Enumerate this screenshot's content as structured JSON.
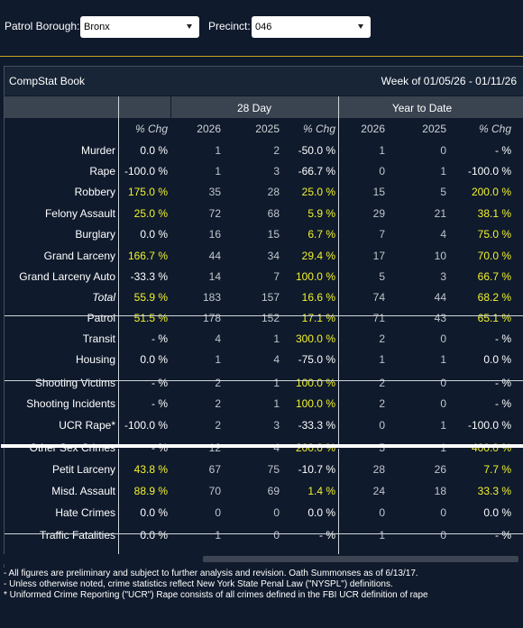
{
  "filters": {
    "borough_label": "Patrol Borough:",
    "borough_value": "Bronx",
    "precinct_label": "Precinct:",
    "precinct_value": "046"
  },
  "panel": {
    "title": "CompStat Book",
    "week": "Week of 01/05/26 - 01/11/26"
  },
  "groups": {
    "day28": "28 Day",
    "ytd": "Year to Date"
  },
  "columns": {
    "pct1": "% Chg",
    "a2026": "2026",
    "a2025": "2025",
    "pct2": "% Chg",
    "y2026": "2026",
    "y2025": "2025",
    "pct3": "% Chg"
  },
  "rows": [
    {
      "label": "Murder",
      "p1": "0.0 %",
      "a26": "1",
      "a25": "2",
      "p2": "-50.0 %",
      "y26": "1",
      "y25": "0",
      "p3": "- %",
      "hl": [
        false,
        false,
        false
      ]
    },
    {
      "label": "Rape",
      "p1": "-100.0 %",
      "a26": "1",
      "a25": "3",
      "p2": "-66.7 %",
      "y26": "0",
      "y25": "1",
      "p3": "-100.0 %",
      "hl": [
        false,
        false,
        false
      ]
    },
    {
      "label": "Robbery",
      "p1": "175.0 %",
      "a26": "35",
      "a25": "28",
      "p2": "25.0 %",
      "y26": "15",
      "y25": "5",
      "p3": "200.0 %",
      "hl": [
        true,
        true,
        true
      ]
    },
    {
      "label": "Felony Assault",
      "p1": "25.0 %",
      "a26": "72",
      "a25": "68",
      "p2": "5.9 %",
      "y26": "29",
      "y25": "21",
      "p3": "38.1 %",
      "hl": [
        true,
        true,
        true
      ]
    },
    {
      "label": "Burglary",
      "p1": "0.0 %",
      "a26": "16",
      "a25": "15",
      "p2": "6.7 %",
      "y26": "7",
      "y25": "4",
      "p3": "75.0 %",
      "hl": [
        false,
        true,
        true
      ]
    },
    {
      "label": "Grand Larceny",
      "p1": "166.7 %",
      "a26": "44",
      "a25": "34",
      "p2": "29.4 %",
      "y26": "17",
      "y25": "10",
      "p3": "70.0 %",
      "hl": [
        true,
        true,
        true
      ]
    },
    {
      "label": "Grand Larceny Auto",
      "p1": "-33.3 %",
      "a26": "14",
      "a25": "7",
      "p2": "100.0 %",
      "y26": "5",
      "y25": "3",
      "p3": "66.7 %",
      "hl": [
        false,
        true,
        true
      ]
    },
    {
      "label": "Total",
      "p1": "55.9 %",
      "a26": "183",
      "a25": "157",
      "p2": "16.6 %",
      "y26": "74",
      "y25": "44",
      "p3": "68.2 %",
      "hl": [
        true,
        true,
        true
      ],
      "italic": true
    },
    {
      "label": "Patrol",
      "p1": "51.5 %",
      "a26": "178",
      "a25": "152",
      "p2": "17.1 %",
      "y26": "71",
      "y25": "43",
      "p3": "65.1 %",
      "hl": [
        true,
        true,
        true
      ]
    },
    {
      "label": "Transit",
      "p1": "- %",
      "a26": "4",
      "a25": "1",
      "p2": "300.0 %",
      "y26": "2",
      "y25": "0",
      "p3": "- %",
      "hl": [
        false,
        true,
        false
      ]
    },
    {
      "label": "Housing",
      "p1": "0.0 %",
      "a26": "1",
      "a25": "4",
      "p2": "-75.0 %",
      "y26": "1",
      "y25": "1",
      "p3": "0.0 %",
      "hl": [
        false,
        false,
        false
      ]
    },
    {
      "label": "Shooting Victims",
      "p1": "- %",
      "a26": "2",
      "a25": "1",
      "p2": "100.0 %",
      "y26": "2",
      "y25": "0",
      "p3": "- %",
      "hl": [
        false,
        true,
        false
      ]
    },
    {
      "label": "Shooting Incidents",
      "p1": "- %",
      "a26": "2",
      "a25": "1",
      "p2": "100.0 %",
      "y26": "2",
      "y25": "0",
      "p3": "- %",
      "hl": [
        false,
        true,
        false
      ]
    },
    {
      "label": "UCR Rape*",
      "p1": "-100.0 %",
      "a26": "2",
      "a25": "3",
      "p2": "-33.3 %",
      "y26": "0",
      "y25": "1",
      "p3": "-100.0 %",
      "hl": [
        false,
        false,
        false
      ]
    },
    {
      "label": "Other Sex Crimes",
      "p1": "- %",
      "a26": "12",
      "a25": "4",
      "p2": "200.0 %",
      "y26": "5",
      "y25": "1",
      "p3": "400.0 %",
      "hl": [
        false,
        true,
        true
      ]
    },
    {
      "label": "Petit Larceny",
      "p1": "43.8 %",
      "a26": "67",
      "a25": "75",
      "p2": "-10.7 %",
      "y26": "28",
      "y25": "26",
      "p3": "7.7 %",
      "hl": [
        true,
        false,
        true
      ]
    },
    {
      "label": "Misd. Assault",
      "p1": "88.9 %",
      "a26": "70",
      "a25": "69",
      "p2": "1.4 %",
      "y26": "24",
      "y25": "18",
      "p3": "33.3 %",
      "hl": [
        true,
        true,
        true
      ]
    },
    {
      "label": "Hate Crimes",
      "p1": "0.0 %",
      "a26": "0",
      "a25": "0",
      "p2": "0.0 %",
      "y26": "0",
      "y25": "0",
      "p3": "0.0 %",
      "hl": [
        false,
        false,
        false
      ]
    },
    {
      "label": "Traffic Fatalities",
      "p1": "0.0 %",
      "a26": "1",
      "a25": "0",
      "p2": "- %",
      "y26": "1",
      "y25": "0",
      "p3": "- %",
      "hl": [
        false,
        false,
        false
      ]
    }
  ],
  "notes": [
    "- All figures are preliminary and subject to further analysis and revision. Oath Summonses as of 6/13/17.",
    "- Unless otherwise noted, crime statistics reflect New York State Penal Law (\"NYSPL\") definitions.",
    "* Uniformed Crime Reporting (\"UCR\") Rape consists of all crimes defined in the FBI UCR definition of rape"
  ],
  "colors": {
    "background": "#0f1a2c",
    "highlight": "#f2f22e",
    "accent_line": "#c9a227"
  }
}
